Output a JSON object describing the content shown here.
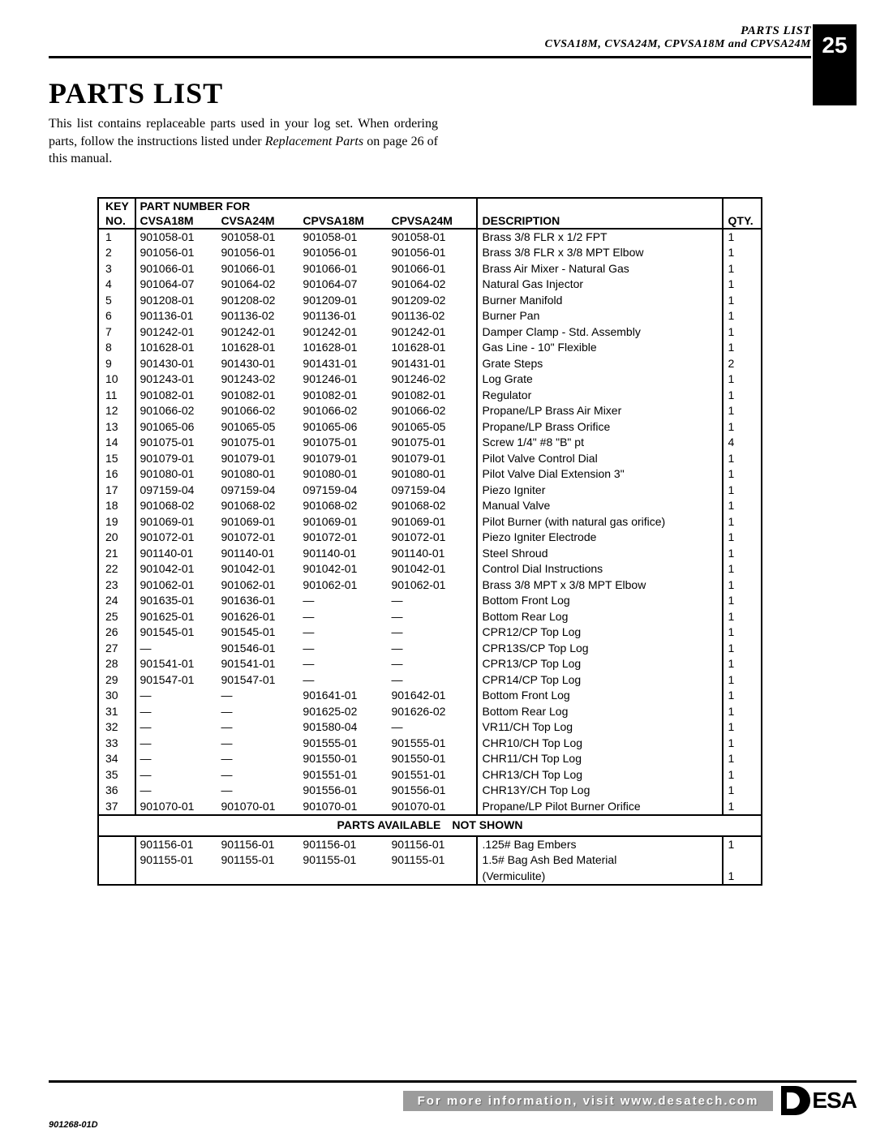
{
  "header": {
    "small_title": "PARTS LIST",
    "subtitle": "CVSA18M, CVSA24M, CPVSA18M and CPVSA24M",
    "page_number": "25"
  },
  "main": {
    "heading": "PARTS LIST",
    "intro_line1": "This list contains replaceable parts used in your log set. When ordering parts, follow the instructions listed under ",
    "intro_italic": "Replacement Parts",
    "intro_line2": " on page 26 of this manual."
  },
  "table": {
    "hdr_key1": "KEY",
    "hdr_key2": "NO.",
    "hdr_partnum": "PART NUMBER FOR",
    "hdr_c1": "CVSA18M",
    "hdr_c2": "CVSA24M",
    "hdr_c3": "CPVSA18M",
    "hdr_c4": "CPVSA24M",
    "hdr_desc": "DESCRIPTION",
    "hdr_qty": "QTY.",
    "section_label": "PARTS AVAILABLE NOT SHOWN",
    "rows": [
      {
        "k": "1",
        "a": "901058-01",
        "b": "901058-01",
        "c": "901058-01",
        "d": "901058-01",
        "desc": "Brass 3/8 FLR x 1/2 FPT",
        "q": "1"
      },
      {
        "k": "2",
        "a": "901056-01",
        "b": "901056-01",
        "c": "901056-01",
        "d": "901056-01",
        "desc": "Brass 3/8 FLR x 3/8 MPT Elbow",
        "q": "1"
      },
      {
        "k": "3",
        "a": "901066-01",
        "b": "901066-01",
        "c": "901066-01",
        "d": "901066-01",
        "desc": "Brass Air Mixer - Natural Gas",
        "q": "1"
      },
      {
        "k": "4",
        "a": "901064-07",
        "b": "901064-02",
        "c": "901064-07",
        "d": "901064-02",
        "desc": "Natural Gas Injector",
        "q": "1"
      },
      {
        "k": "5",
        "a": "901208-01",
        "b": "901208-02",
        "c": "901209-01",
        "d": "901209-02",
        "desc": "Burner Manifold",
        "q": "1"
      },
      {
        "k": "6",
        "a": "901136-01",
        "b": "901136-02",
        "c": "901136-01",
        "d": "901136-02",
        "desc": "Burner Pan",
        "q": "1"
      },
      {
        "k": "7",
        "a": "901242-01",
        "b": "901242-01",
        "c": "901242-01",
        "d": "901242-01",
        "desc": "Damper Clamp - Std. Assembly",
        "q": "1"
      },
      {
        "k": "8",
        "a": "101628-01",
        "b": "101628-01",
        "c": "101628-01",
        "d": "101628-01",
        "desc": "Gas Line - 10\" Flexible",
        "q": "1"
      },
      {
        "k": "9",
        "a": "901430-01",
        "b": "901430-01",
        "c": "901431-01",
        "d": "901431-01",
        "desc": "Grate Steps",
        "q": "2"
      },
      {
        "k": "10",
        "a": "901243-01",
        "b": "901243-02",
        "c": "901246-01",
        "d": "901246-02",
        "desc": "Log Grate",
        "q": "1"
      },
      {
        "k": "11",
        "a": "901082-01",
        "b": "901082-01",
        "c": "901082-01",
        "d": "901082-01",
        "desc": "Regulator",
        "q": "1"
      },
      {
        "k": "12",
        "a": "901066-02",
        "b": "901066-02",
        "c": "901066-02",
        "d": "901066-02",
        "desc": "Propane/LP Brass Air Mixer",
        "q": "1"
      },
      {
        "k": "13",
        "a": "901065-06",
        "b": "901065-05",
        "c": "901065-06",
        "d": "901065-05",
        "desc": "Propane/LP Brass Orifice",
        "q": "1"
      },
      {
        "k": "14",
        "a": "901075-01",
        "b": "901075-01",
        "c": "901075-01",
        "d": "901075-01",
        "desc": "Screw 1/4\" #8 \"B\" pt",
        "q": "4"
      },
      {
        "k": "15",
        "a": "901079-01",
        "b": "901079-01",
        "c": "901079-01",
        "d": "901079-01",
        "desc": "Pilot Valve Control Dial",
        "q": "1"
      },
      {
        "k": "16",
        "a": "901080-01",
        "b": "901080-01",
        "c": "901080-01",
        "d": "901080-01",
        "desc": "Pilot Valve Dial Extension 3\"",
        "q": "1"
      },
      {
        "k": "17",
        "a": "097159-04",
        "b": "097159-04",
        "c": "097159-04",
        "d": "097159-04",
        "desc": "Piezo Igniter",
        "q": "1"
      },
      {
        "k": "18",
        "a": "901068-02",
        "b": "901068-02",
        "c": "901068-02",
        "d": "901068-02",
        "desc": "Manual Valve",
        "q": "1"
      },
      {
        "k": "19",
        "a": "901069-01",
        "b": "901069-01",
        "c": "901069-01",
        "d": "901069-01",
        "desc": "Pilot Burner (with natural gas orifice)",
        "q": "1"
      },
      {
        "k": "20",
        "a": "901072-01",
        "b": "901072-01",
        "c": "901072-01",
        "d": "901072-01",
        "desc": "Piezo Igniter Electrode",
        "q": "1"
      },
      {
        "k": "21",
        "a": "901140-01",
        "b": "901140-01",
        "c": "901140-01",
        "d": "901140-01",
        "desc": "Steel Shroud",
        "q": "1"
      },
      {
        "k": "22",
        "a": "901042-01",
        "b": "901042-01",
        "c": "901042-01",
        "d": "901042-01",
        "desc": "Control Dial Instructions",
        "q": "1"
      },
      {
        "k": "23",
        "a": "901062-01",
        "b": "901062-01",
        "c": "901062-01",
        "d": "901062-01",
        "desc": "Brass 3/8 MPT x 3/8 MPT Elbow",
        "q": "1"
      },
      {
        "k": "24",
        "a": "901635-01",
        "b": "901636-01",
        "c": "—",
        "d": "—",
        "desc": "Bottom Front Log",
        "q": "1"
      },
      {
        "k": "25",
        "a": "901625-01",
        "b": "901626-01",
        "c": "—",
        "d": "—",
        "desc": "Bottom Rear Log",
        "q": "1"
      },
      {
        "k": "26",
        "a": "901545-01",
        "b": "901545-01",
        "c": "—",
        "d": "—",
        "desc": "CPR12/CP Top Log",
        "q": "1"
      },
      {
        "k": "27",
        "a": "—",
        "b": "901546-01",
        "c": "—",
        "d": "—",
        "desc": "CPR13S/CP Top Log",
        "q": "1"
      },
      {
        "k": "28",
        "a": "901541-01",
        "b": "901541-01",
        "c": "—",
        "d": "—",
        "desc": "CPR13/CP Top Log",
        "q": "1"
      },
      {
        "k": "29",
        "a": "901547-01",
        "b": "901547-01",
        "c": "—",
        "d": "—",
        "desc": "CPR14/CP Top Log",
        "q": "1"
      },
      {
        "k": "30",
        "a": "—",
        "b": "—",
        "c": "901641-01",
        "d": "901642-01",
        "desc": "Bottom Front Log",
        "q": "1"
      },
      {
        "k": "31",
        "a": "—",
        "b": "—",
        "c": "901625-02",
        "d": "901626-02",
        "desc": "Bottom Rear Log",
        "q": "1"
      },
      {
        "k": "32",
        "a": "—",
        "b": "—",
        "c": "901580-04",
        "d": "—",
        "desc": "VR11/CH Top Log",
        "q": "1"
      },
      {
        "k": "33",
        "a": "—",
        "b": "—",
        "c": "901555-01",
        "d": "901555-01",
        "desc": "CHR10/CH Top Log",
        "q": "1"
      },
      {
        "k": "34",
        "a": "—",
        "b": "—",
        "c": "901550-01",
        "d": "901550-01",
        "desc": "CHR11/CH Top Log",
        "q": "1"
      },
      {
        "k": "35",
        "a": "—",
        "b": "—",
        "c": "901551-01",
        "d": "901551-01",
        "desc": "CHR13/CH Top Log",
        "q": "1"
      },
      {
        "k": "36",
        "a": "—",
        "b": "—",
        "c": "901556-01",
        "d": "901556-01",
        "desc": "CHR13Y/CH Top Log",
        "q": "1"
      },
      {
        "k": "37",
        "a": "901070-01",
        "b": "901070-01",
        "c": "901070-01",
        "d": "901070-01",
        "desc": "Propane/LP Pilot Burner Orifice",
        "q": "1"
      }
    ],
    "rows2": [
      {
        "k": "",
        "a": "901156-01",
        "b": "901156-01",
        "c": "901156-01",
        "d": "901156-01",
        "desc": ".125# Bag Embers",
        "q": "1"
      },
      {
        "k": "",
        "a": "901155-01",
        "b": "901155-01",
        "c": "901155-01",
        "d": "901155-01",
        "desc": "1.5# Bag Ash Bed Material",
        "q": ""
      },
      {
        "k": "",
        "a": "",
        "b": "",
        "c": "",
        "d": "",
        "desc": "(Vermiculite)",
        "q": "1"
      }
    ]
  },
  "footer": {
    "bar_text": "For more information, visit www.desatech.com",
    "logo_text": "ESA",
    "doc_code": "901268-01D"
  }
}
